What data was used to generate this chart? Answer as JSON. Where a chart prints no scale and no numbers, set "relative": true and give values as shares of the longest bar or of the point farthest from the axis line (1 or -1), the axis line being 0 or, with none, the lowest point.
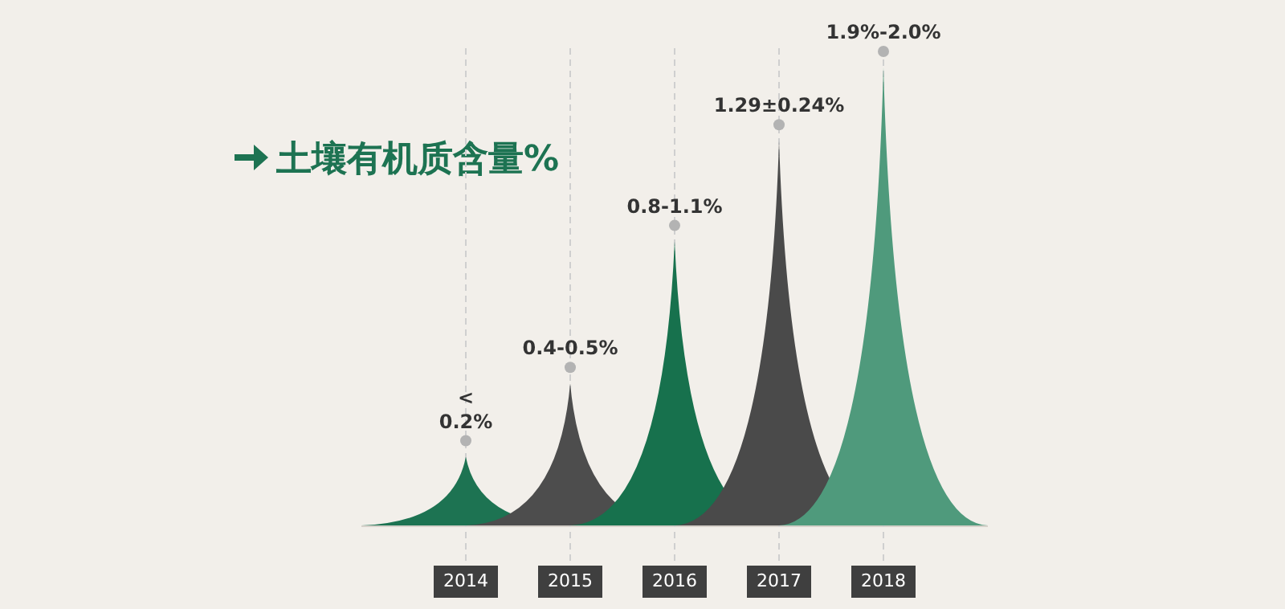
{
  "chart_data": {
    "type": "area",
    "title": "土壤有机质含量%",
    "relative": true,
    "grid": "x",
    "xlim": [
      2013,
      2019
    ],
    "xticks": [
      2014,
      2015,
      2016,
      2017,
      2018
    ],
    "series": [
      {
        "color": "#1d7352",
        "x": [
          2013,
          2014,
          2015
        ],
        "values": [
          0,
          0.15,
          0
        ]
      },
      {
        "color": "#4d4d4d",
        "x": [
          2014,
          2015,
          2016
        ],
        "values": [
          0,
          0.31,
          0
        ]
      },
      {
        "color": "#17714d",
        "x": [
          2015,
          2016,
          2017
        ],
        "values": [
          0,
          0.62,
          0
        ]
      },
      {
        "color": "#4a4a4a",
        "x": [
          2016,
          2017,
          2018
        ],
        "values": [
          0,
          0.84,
          0
        ]
      },
      {
        "color": "#4f9a7c",
        "x": [
          2017,
          2018,
          2019
        ],
        "values": [
          0,
          1,
          0
        ]
      }
    ],
    "annotations": [
      "< 0.2%",
      "0.4-0.5%",
      "0.8-1.1%",
      "1.29±0.24%",
      "1.9%-2.0%"
    ]
  }
}
